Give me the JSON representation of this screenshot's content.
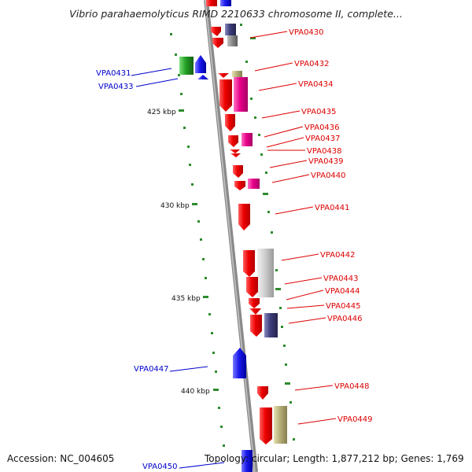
{
  "title": "Vibrio parahaemolyticus RIMD 2210633 chromosome II, complete...",
  "footer": {
    "accession": "Accession: NC_004605",
    "topology": "Topology: circular; Length: 1,877,212 bp; Genes: 1,769"
  },
  "colors": {
    "backbone": "#8a8a8a",
    "tick": "#2e8b2e",
    "red_gene": "#e60000",
    "magenta_gene": "#e8008a",
    "blue_gene": "#1a1aee",
    "green_gene": "#22a022",
    "navy_gene": "#3c3c7a",
    "grey_gene": "#8c8c8c",
    "silver_gene": "#c8c8c8",
    "khaki_gene": "#b7b07a",
    "label_red": "#dd0000",
    "label_blue": "#0000cc"
  },
  "scale_labels": [
    "425 kbp",
    "430 kbp",
    "435 kbp",
    "440 kbp"
  ],
  "gene_labels_right": [
    "VPA0430",
    "VPA0432",
    "VPA0434",
    "VPA0435",
    "VPA0436",
    "VPA0437",
    "VPA0438",
    "VPA0439",
    "VPA0440",
    "VPA0441",
    "VPA0442",
    "VPA0443",
    "VPA0444",
    "VPA0445",
    "VPA0446",
    "VPA0448",
    "VPA0449"
  ],
  "gene_labels_left": [
    "VPA0431",
    "VPA0433",
    "VPA0447",
    "VPA0450"
  ]
}
